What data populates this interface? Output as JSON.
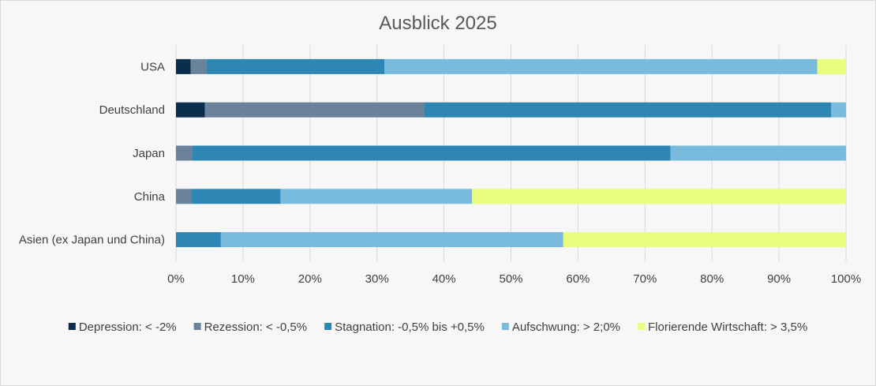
{
  "chart_data": {
    "type": "bar",
    "orientation": "horizontal",
    "stacked": "percent",
    "title": "Ausblick 2025",
    "xlabel": "",
    "ylabel": "",
    "xlim": [
      0,
      100
    ],
    "x_ticks": [
      "0%",
      "10%",
      "20%",
      "30%",
      "40%",
      "50%",
      "60%",
      "70%",
      "80%",
      "90%",
      "100%"
    ],
    "grid": "vertical",
    "legend_position": "bottom",
    "categories": [
      "USA",
      "Deutschland",
      "Japan",
      "China",
      "Asien (ex Japan und China)"
    ],
    "series": [
      {
        "name": "Depression: < -2%",
        "color": "#0b2e4f",
        "values": [
          2.2,
          4.3,
          0,
          0,
          0
        ]
      },
      {
        "name": "Rezession: < -0,5%",
        "color": "#6b839a",
        "values": [
          2.3,
          32.7,
          2.4,
          2.3,
          0
        ]
      },
      {
        "name": "Stagnation: -0,5% bis +0,5%",
        "color": "#2e86b5",
        "values": [
          26.6,
          60.8,
          71.4,
          13.3,
          6.7
        ]
      },
      {
        "name": "Aufschwung: > 2;0%",
        "color": "#78bbdc",
        "values": [
          64.6,
          2.2,
          26.2,
          28.6,
          51.1
        ]
      },
      {
        "name": "Florierende Wirtschaft: > 3,5%",
        "color": "#eafd7f",
        "values": [
          4.3,
          0,
          0,
          55.8,
          42.2
        ]
      }
    ]
  }
}
